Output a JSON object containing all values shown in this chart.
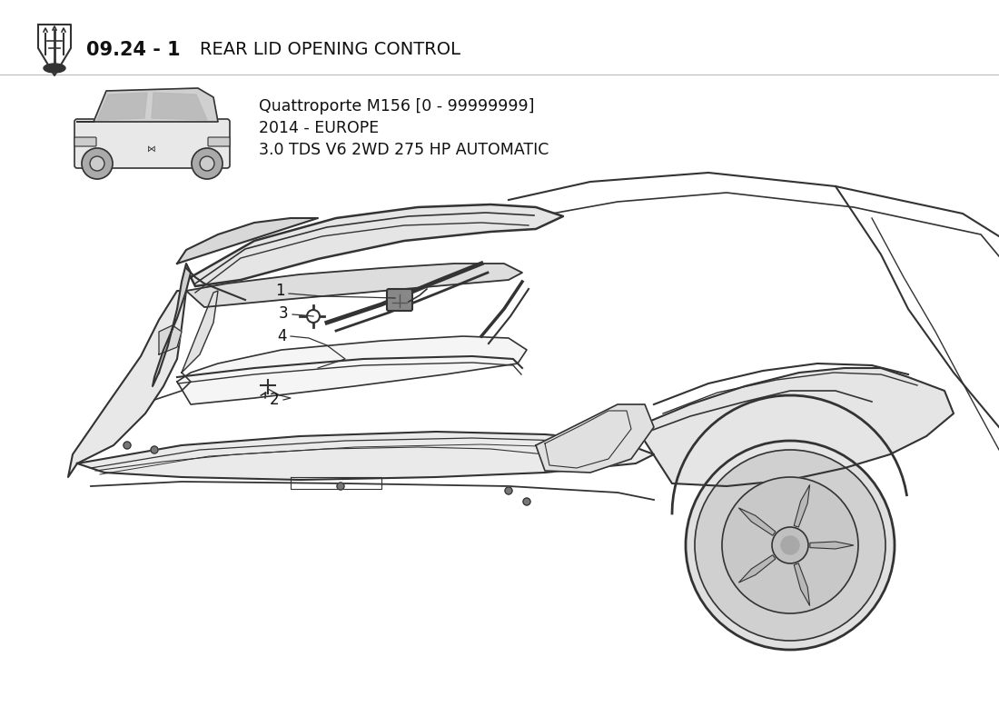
{
  "title_number": "09.24 - 1",
  "title_text": "REAR LID OPENING CONTROL",
  "model_line1": "Quattroporte M156 [0 - 99999999]",
  "model_line2": "2014 - EUROPE",
  "model_line3": "3.0 TDS V6 2WD 275 HP AUTOMATIC",
  "background_color": "#ffffff",
  "line_color": "#333333",
  "text_color": "#111111",
  "part_numbers": [
    "1",
    "2",
    "3",
    "4"
  ],
  "fig_width": 11.0,
  "fig_height": 8.0,
  "dpi": 100
}
